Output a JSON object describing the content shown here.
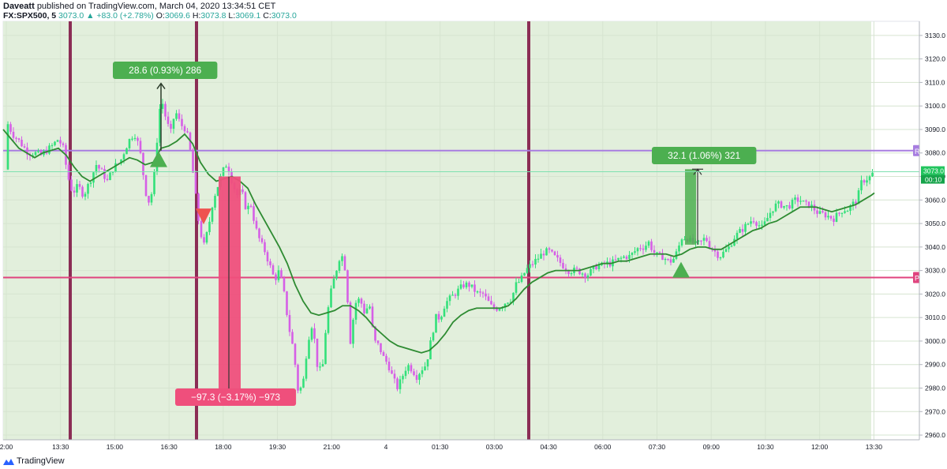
{
  "header": {
    "author": "Daveatt",
    "published": "published on TradingView.com, March 04, 2020 13:34:51 CET",
    "symbol": "FX:SPX500, 5",
    "last": "3073.0",
    "change": "+83.0 (+2.78%)",
    "open_label": "O:",
    "open": "3069.6",
    "high_label": "H:",
    "high": "3073.8",
    "low_label": "L:",
    "low": "3069.1",
    "close_label": "C:",
    "close": "3073.0"
  },
  "footer": {
    "brand": "TradingView"
  },
  "colors": {
    "bg_zone": "#e2efdc",
    "bull": "#33e07a",
    "bear": "#d65fe6",
    "ma": "#2e8b32",
    "vline": "#8b2d55",
    "resistance": "#a77de0",
    "support": "#e0437e",
    "long_box": "#4caf50",
    "short_box": "#ef4f7c"
  },
  "chart_data": {
    "type": "candlestick",
    "ylim": [
      2958,
      3136
    ],
    "y_ticks": [
      2960,
      2970,
      2980,
      2990,
      3000,
      3010,
      3020,
      3030,
      3040,
      3050,
      3060,
      3070,
      3080,
      3090,
      3100,
      3110,
      3120,
      3130
    ],
    "y_tick_labels": [
      "2960.0",
      "2970.0",
      "2980.0",
      "2990.0",
      "3000.0",
      "3010.0",
      "3020.0",
      "3030.0",
      "3040.0",
      "3050.0",
      "3060.0",
      "3070.0",
      "3080.0",
      "3090.0",
      "3100.0",
      "3110.0",
      "3120.0",
      "3130.0"
    ],
    "x_ticks": [
      "2:00",
      "13:30",
      "15:00",
      "16:30",
      "18:00",
      "19:30",
      "21:00",
      "4",
      "01:30",
      "03:00",
      "04:30",
      "06:00",
      "07:30",
      "09:00",
      "10:30",
      "12:00",
      "13:30"
    ],
    "price_label": "3073.0",
    "countdown_label": "00:10",
    "horizontal_levels": [
      {
        "name": "resistance",
        "value": 3081,
        "tag": "R"
      },
      {
        "name": "support",
        "value": 3027,
        "tag": "P"
      }
    ],
    "ma_path": [
      [
        0,
        3090
      ],
      [
        10,
        3086
      ],
      [
        20,
        3082
      ],
      [
        30,
        3080
      ],
      [
        40,
        3078
      ],
      [
        50,
        3080
      ],
      [
        60,
        3081
      ],
      [
        70,
        3082
      ],
      [
        80,
        3079
      ],
      [
        90,
        3074
      ],
      [
        100,
        3070
      ],
      [
        110,
        3068
      ],
      [
        120,
        3070
      ],
      [
        130,
        3072
      ],
      [
        140,
        3074
      ],
      [
        150,
        3076
      ],
      [
        160,
        3078
      ],
      [
        170,
        3077
      ],
      [
        180,
        3075
      ],
      [
        190,
        3076
      ],
      [
        200,
        3082
      ],
      [
        210,
        3083
      ],
      [
        220,
        3085
      ],
      [
        230,
        3088
      ],
      [
        240,
        3084
      ],
      [
        250,
        3076
      ],
      [
        260,
        3071
      ],
      [
        270,
        3068
      ],
      [
        280,
        3069
      ],
      [
        290,
        3070
      ],
      [
        300,
        3068
      ],
      [
        310,
        3065
      ],
      [
        320,
        3058
      ],
      [
        330,
        3052
      ],
      [
        340,
        3046
      ],
      [
        350,
        3040
      ],
      [
        360,
        3033
      ],
      [
        370,
        3024
      ],
      [
        380,
        3017
      ],
      [
        390,
        3012
      ],
      [
        400,
        3011
      ],
      [
        410,
        3012
      ],
      [
        420,
        3013
      ],
      [
        430,
        3015
      ],
      [
        440,
        3015
      ],
      [
        450,
        3013
      ],
      [
        460,
        3010
      ],
      [
        470,
        3006
      ],
      [
        480,
        3003
      ],
      [
        490,
        3000
      ],
      [
        500,
        2998
      ],
      [
        510,
        2997
      ],
      [
        520,
        2996
      ],
      [
        530,
        2995
      ],
      [
        540,
        2996
      ],
      [
        550,
        2999
      ],
      [
        560,
        3003
      ],
      [
        570,
        3008
      ],
      [
        580,
        3011
      ],
      [
        590,
        3013
      ],
      [
        600,
        3014
      ],
      [
        610,
        3014
      ],
      [
        620,
        3014
      ],
      [
        630,
        3014
      ],
      [
        640,
        3015
      ],
      [
        650,
        3018
      ],
      [
        660,
        3022
      ],
      [
        670,
        3025
      ],
      [
        680,
        3027
      ],
      [
        690,
        3029
      ],
      [
        700,
        3030
      ],
      [
        710,
        3030
      ],
      [
        720,
        3030
      ],
      [
        730,
        3030
      ],
      [
        740,
        3031
      ],
      [
        750,
        3032
      ],
      [
        760,
        3033
      ],
      [
        770,
        3033
      ],
      [
        780,
        3034
      ],
      [
        790,
        3034
      ],
      [
        800,
        3035
      ],
      [
        810,
        3036
      ],
      [
        820,
        3037
      ],
      [
        830,
        3037
      ],
      [
        840,
        3037
      ],
      [
        850,
        3036
      ],
      [
        860,
        3037
      ],
      [
        870,
        3039
      ],
      [
        880,
        3040
      ],
      [
        890,
        3040
      ],
      [
        900,
        3039
      ],
      [
        910,
        3039
      ],
      [
        920,
        3041
      ],
      [
        930,
        3043
      ],
      [
        940,
        3045
      ],
      [
        950,
        3047
      ],
      [
        960,
        3048
      ],
      [
        970,
        3050
      ],
      [
        980,
        3051
      ],
      [
        990,
        3053
      ],
      [
        1000,
        3055
      ],
      [
        1010,
        3057
      ],
      [
        1020,
        3057
      ],
      [
        1030,
        3057
      ],
      [
        1040,
        3056
      ],
      [
        1050,
        3055
      ],
      [
        1060,
        3056
      ],
      [
        1070,
        3057
      ],
      [
        1080,
        3058
      ],
      [
        1090,
        3060
      ],
      [
        1100,
        3062
      ],
      [
        1104,
        3063
      ]
    ],
    "candle_path": [
      [
        5,
        3093
      ],
      [
        12,
        3088
      ],
      [
        18,
        3086
      ],
      [
        25,
        3083
      ],
      [
        32,
        3080
      ],
      [
        40,
        3080
      ],
      [
        48,
        3079
      ],
      [
        55,
        3081
      ],
      [
        62,
        3083
      ],
      [
        70,
        3086
      ],
      [
        76,
        3082
      ],
      [
        82,
        3070
      ],
      [
        88,
        3063
      ],
      [
        95,
        3066
      ],
      [
        102,
        3062
      ],
      [
        110,
        3068
      ],
      [
        118,
        3075
      ],
      [
        125,
        3072
      ],
      [
        132,
        3068
      ],
      [
        140,
        3074
      ],
      [
        148,
        3076
      ],
      [
        155,
        3082
      ],
      [
        162,
        3087
      ],
      [
        168,
        3088
      ],
      [
        175,
        3078
      ],
      [
        180,
        3064
      ],
      [
        186,
        3058
      ],
      [
        192,
        3072
      ],
      [
        196,
        3090
      ],
      [
        200,
        3104
      ],
      [
        206,
        3095
      ],
      [
        212,
        3088
      ],
      [
        218,
        3098
      ],
      [
        225,
        3092
      ],
      [
        232,
        3090
      ],
      [
        238,
        3079
      ],
      [
        242,
        3067
      ],
      [
        248,
        3050
      ],
      [
        254,
        3040
      ],
      [
        260,
        3048
      ],
      [
        266,
        3060
      ],
      [
        272,
        3066
      ],
      [
        278,
        3072
      ],
      [
        284,
        3076
      ],
      [
        290,
        3068
      ],
      [
        296,
        3062
      ],
      [
        302,
        3064
      ],
      [
        308,
        3056
      ],
      [
        314,
        3058
      ],
      [
        320,
        3048
      ],
      [
        326,
        3042
      ],
      [
        332,
        3038
      ],
      [
        338,
        3032
      ],
      [
        344,
        3026
      ],
      [
        350,
        3030
      ],
      [
        356,
        3020
      ],
      [
        362,
        3006
      ],
      [
        368,
        2996
      ],
      [
        374,
        2978
      ],
      [
        380,
        2982
      ],
      [
        386,
        3000
      ],
      [
        392,
        3008
      ],
      [
        398,
        2990
      ],
      [
        404,
        2986
      ],
      [
        410,
        3010
      ],
      [
        416,
        3022
      ],
      [
        422,
        3030
      ],
      [
        428,
        3038
      ],
      [
        434,
        3030
      ],
      [
        440,
        3000
      ],
      [
        446,
        3016
      ],
      [
        452,
        3018
      ],
      [
        458,
        3012
      ],
      [
        464,
        3016
      ],
      [
        470,
        3000
      ],
      [
        476,
        2998
      ],
      [
        482,
        2993
      ],
      [
        488,
        2990
      ],
      [
        494,
        2984
      ],
      [
        500,
        2980
      ],
      [
        506,
        2985
      ],
      [
        512,
        2990
      ],
      [
        518,
        2988
      ],
      [
        524,
        2985
      ],
      [
        530,
        2988
      ],
      [
        536,
        2990
      ],
      [
        542,
        3000
      ],
      [
        548,
        3010
      ],
      [
        554,
        3010
      ],
      [
        560,
        3016
      ],
      [
        566,
        3018
      ],
      [
        572,
        3020
      ],
      [
        578,
        3022
      ],
      [
        584,
        3024
      ],
      [
        590,
        3024
      ],
      [
        596,
        3022
      ],
      [
        602,
        3020
      ],
      [
        608,
        3020
      ],
      [
        614,
        3017
      ],
      [
        620,
        3014
      ],
      [
        626,
        3014
      ],
      [
        632,
        3015
      ],
      [
        638,
        3017
      ],
      [
        644,
        3018
      ],
      [
        650,
        3024
      ],
      [
        656,
        3026
      ],
      [
        662,
        3030
      ],
      [
        668,
        3032
      ],
      [
        674,
        3034
      ],
      [
        680,
        3036
      ],
      [
        686,
        3038
      ],
      [
        692,
        3038
      ],
      [
        698,
        3036
      ],
      [
        704,
        3034
      ],
      [
        710,
        3032
      ],
      [
        716,
        3030
      ],
      [
        722,
        3030
      ],
      [
        728,
        3030
      ],
      [
        734,
        3029
      ],
      [
        740,
        3028
      ],
      [
        746,
        3030
      ],
      [
        752,
        3032
      ],
      [
        758,
        3032
      ],
      [
        764,
        3033
      ],
      [
        770,
        3033
      ],
      [
        776,
        3034
      ],
      [
        782,
        3035
      ],
      [
        788,
        3036
      ],
      [
        794,
        3036
      ],
      [
        800,
        3038
      ],
      [
        806,
        3040
      ],
      [
        812,
        3040
      ],
      [
        818,
        3042
      ],
      [
        824,
        3038
      ],
      [
        830,
        3036
      ],
      [
        836,
        3036
      ],
      [
        842,
        3034
      ],
      [
        848,
        3034
      ],
      [
        854,
        3038
      ],
      [
        860,
        3044
      ],
      [
        866,
        3044
      ],
      [
        872,
        3042
      ],
      [
        878,
        3041
      ],
      [
        884,
        3042
      ],
      [
        890,
        3044
      ],
      [
        896,
        3040
      ],
      [
        902,
        3038
      ],
      [
        908,
        3036
      ],
      [
        914,
        3038
      ],
      [
        920,
        3040
      ],
      [
        926,
        3044
      ],
      [
        932,
        3046
      ],
      [
        938,
        3048
      ],
      [
        944,
        3050
      ],
      [
        950,
        3052
      ],
      [
        956,
        3050
      ],
      [
        962,
        3048
      ],
      [
        968,
        3052
      ],
      [
        974,
        3056
      ],
      [
        980,
        3058
      ],
      [
        986,
        3058
      ],
      [
        992,
        3057
      ],
      [
        998,
        3058
      ],
      [
        1004,
        3060
      ],
      [
        1010,
        3060
      ],
      [
        1016,
        3058
      ],
      [
        1022,
        3058
      ],
      [
        1028,
        3056
      ],
      [
        1034,
        3054
      ],
      [
        1040,
        3054
      ],
      [
        1046,
        3053
      ],
      [
        1052,
        3052
      ],
      [
        1058,
        3054
      ],
      [
        1064,
        3056
      ],
      [
        1070,
        3056
      ],
      [
        1076,
        3058
      ],
      [
        1082,
        3060
      ],
      [
        1088,
        3068
      ],
      [
        1094,
        3069
      ],
      [
        1100,
        3070
      ],
      [
        1104,
        3073
      ]
    ],
    "measurements": [
      {
        "label": "28.6 (0.93%) 286",
        "from": 3081,
        "to": 3109.6,
        "x": 204,
        "kind": "long"
      },
      {
        "label": "−97.3 (−3.17%) −973",
        "from": 3070,
        "to": 2972.7,
        "x": 290,
        "kind": "short"
      },
      {
        "label": "32.1 (1.06%) 321",
        "from": 3041,
        "to": 3073.1,
        "x": 885,
        "kind": "long"
      }
    ],
    "signals": [
      {
        "kind": "buy",
        "x": 197,
        "value": 3077
      },
      {
        "kind": "sell",
        "x": 254,
        "value": 3053
      },
      {
        "kind": "buy",
        "x": 859,
        "value": 3030
      }
    ]
  }
}
